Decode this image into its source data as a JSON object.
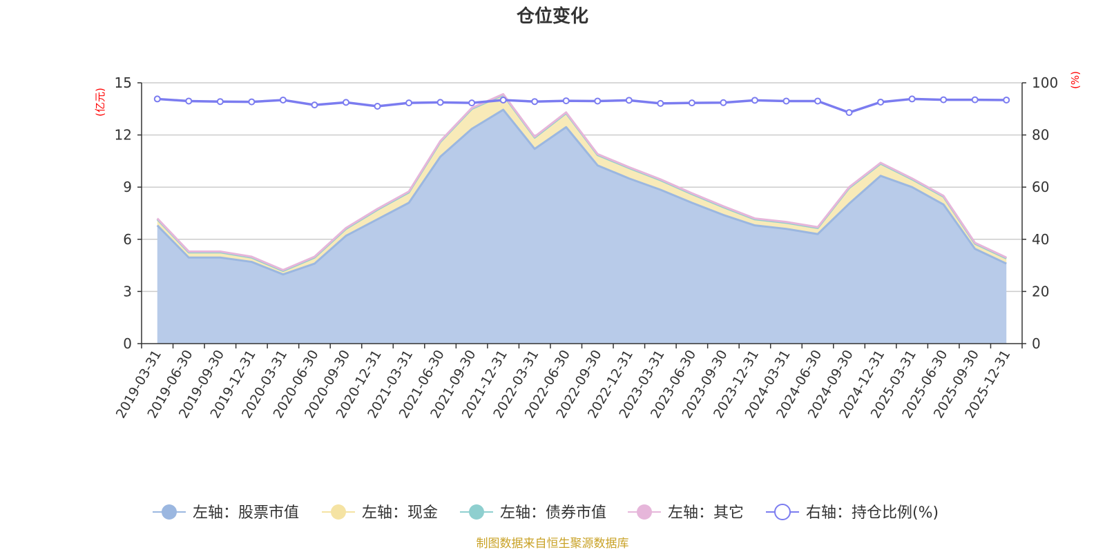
{
  "chart_data": {
    "type": "area",
    "title": "仓位变化",
    "categories": [
      "2019-03-31",
      "2019-06-30",
      "2019-09-30",
      "2019-12-31",
      "2020-03-31",
      "2020-06-30",
      "2020-09-30",
      "2020-12-31",
      "2021-03-31",
      "2021-06-30",
      "2021-09-30",
      "2021-12-31",
      "2022-03-31",
      "2022-06-30",
      "2022-09-30",
      "2022-12-31",
      "2023-03-31",
      "2023-06-30",
      "2023-09-30",
      "2023-12-31",
      "2024-03-31",
      "2024-06-30",
      "2024-09-30",
      "2024-12-31",
      "2025-03-31",
      "2025-06-30",
      "2025-09-30",
      "2025-12-31"
    ],
    "left_axis": {
      "unit": "(亿元)",
      "ylim": [
        0,
        15
      ],
      "ticks": [
        "0",
        "3",
        "6",
        "9",
        "12",
        "15"
      ]
    },
    "right_axis": {
      "unit": "(%)",
      "ylim": [
        0,
        100
      ],
      "ticks": [
        "0",
        "20",
        "40",
        "60",
        "80",
        "100"
      ]
    },
    "grid": true,
    "legend_position": "bottom",
    "series": [
      {
        "name": "左轴：股票市值",
        "axis": "left",
        "stack": true,
        "color": "#9bb7e0",
        "fill": "#b8cbe9",
        "values": [
          6.8,
          4.95,
          4.95,
          4.7,
          3.98,
          4.6,
          6.2,
          7.15,
          8.1,
          10.75,
          12.35,
          13.45,
          11.2,
          12.45,
          10.25,
          9.5,
          8.85,
          8.1,
          7.4,
          6.8,
          6.6,
          6.3,
          8.05,
          9.65,
          9.0,
          8.0,
          5.45,
          4.6
        ]
      },
      {
        "name": "左轴：现金",
        "axis": "left",
        "stack": true,
        "color": "#f5e3a3",
        "fill": "#f8eab8",
        "values": [
          0.35,
          0.3,
          0.3,
          0.25,
          0.2,
          0.35,
          0.4,
          0.55,
          0.6,
          0.85,
          1.15,
          0.85,
          0.65,
          0.8,
          0.6,
          0.6,
          0.55,
          0.5,
          0.45,
          0.35,
          0.35,
          0.35,
          0.9,
          0.7,
          0.45,
          0.45,
          0.3,
          0.3
        ]
      },
      {
        "name": "左轴：债券市值",
        "axis": "left",
        "stack": true,
        "color": "#8ecfcf",
        "fill": "#a8dbdb",
        "values": [
          0,
          0,
          0,
          0,
          0,
          0,
          0,
          0,
          0,
          0,
          0,
          0,
          0,
          0,
          0,
          0,
          0,
          0,
          0,
          0,
          0,
          0,
          0,
          0,
          0,
          0,
          0,
          0
        ]
      },
      {
        "name": "左轴：其它",
        "axis": "left",
        "stack": true,
        "color": "#e6b6da",
        "fill": "#efcbe6",
        "values": [
          0.05,
          0.05,
          0.05,
          0.05,
          0.05,
          0.05,
          0.05,
          0.05,
          0.05,
          0.05,
          0.05,
          0.05,
          0.05,
          0.05,
          0.05,
          0.05,
          0.05,
          0.05,
          0.05,
          0.05,
          0.05,
          0.05,
          0.05,
          0.05,
          0.05,
          0.05,
          0.05,
          0.05
        ]
      },
      {
        "name": "右轴：持仓比例(%)",
        "axis": "right",
        "stack": false,
        "color": "#7b7cf0",
        "fill": "none",
        "values": [
          93.8,
          93.0,
          92.8,
          92.7,
          93.4,
          91.5,
          92.5,
          91.0,
          92.3,
          92.5,
          92.3,
          93.4,
          92.8,
          93.1,
          93.0,
          93.3,
          92.1,
          92.3,
          92.4,
          93.3,
          93.0,
          93.0,
          88.6,
          92.6,
          93.8,
          93.5,
          93.5,
          93.4
        ]
      }
    ]
  },
  "footer": {
    "source": "制图数据来自恒生聚源数据库"
  }
}
